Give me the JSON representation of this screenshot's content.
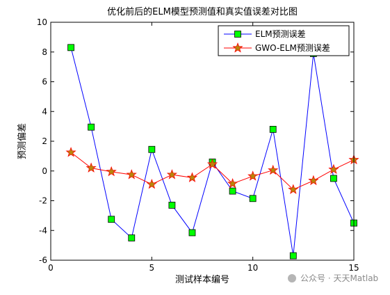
{
  "chart_data": {
    "type": "line",
    "title": "优化前后的ELM模型预测值和真实值误差对比图",
    "xlabel": "测试样本编号",
    "ylabel": "预测偏差",
    "xlim": [
      0,
      15
    ],
    "ylim": [
      -6,
      10
    ],
    "x_ticks": [
      0,
      5,
      10,
      15
    ],
    "y_ticks": [
      -6,
      -4,
      -2,
      0,
      2,
      4,
      6,
      8,
      10
    ],
    "x_tick_labels": [
      "0",
      "5",
      "10",
      "15"
    ],
    "y_tick_labels": [
      "-6",
      "-4",
      "-2",
      "0",
      "2",
      "4",
      "6",
      "8",
      "10"
    ],
    "x": [
      1,
      2,
      3,
      4,
      5,
      6,
      7,
      8,
      9,
      10,
      11,
      12,
      13,
      14,
      15
    ],
    "legend_position": "top-right",
    "grid": false,
    "series": [
      {
        "name": "ELM预测误差",
        "values": [
          8.3,
          2.95,
          -3.25,
          -4.5,
          1.45,
          -2.3,
          -4.15,
          0.6,
          -1.35,
          -1.85,
          2.8,
          -5.7,
          7.9,
          -0.5,
          -3.5
        ],
        "line_color": "#0000ff",
        "marker": "square",
        "marker_color": "#00ff00"
      },
      {
        "name": "GWO-ELM预测误差",
        "values": [
          1.25,
          0.2,
          -0.05,
          -0.25,
          -0.9,
          -0.25,
          -0.45,
          0.45,
          -0.85,
          -0.35,
          0.05,
          -1.25,
          -0.65,
          0.1,
          0.75
        ],
        "line_color": "#ff0000",
        "marker": "star",
        "marker_color": "#b8860b"
      }
    ]
  },
  "watermark": "公众号 · 天天Matlab"
}
